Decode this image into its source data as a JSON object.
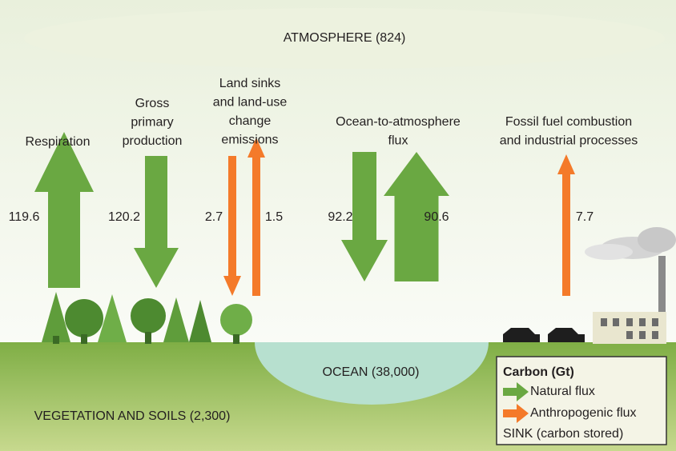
{
  "atmosphere": {
    "label": "ATMOSPHERE (824)"
  },
  "fluxes": [
    {
      "label": [
        "Respiration"
      ],
      "values": [
        "119.6"
      ]
    },
    {
      "label": [
        "Gross",
        "primary",
        "production"
      ],
      "values": [
        "120.2"
      ]
    },
    {
      "label": [
        "Land sinks",
        "and land-use",
        "change",
        "emissions"
      ],
      "values": [
        "2.7",
        "1.5"
      ]
    },
    {
      "label": [
        "Ocean-to-atmosphere",
        "flux"
      ],
      "values": [
        "92.2",
        "90.6"
      ]
    },
    {
      "label": [
        "Fossil fuel combustion",
        "and industrial processes"
      ],
      "values": [
        "7.7"
      ]
    }
  ],
  "reservoirs": {
    "ocean": "OCEAN (38,000)",
    "land": "VEGETATION AND SOILS (2,300)"
  },
  "legend": {
    "title": "Carbon (Gt)",
    "items": [
      "Natural flux",
      "Anthropogenic flux",
      "SINK (carbon stored)"
    ]
  }
}
